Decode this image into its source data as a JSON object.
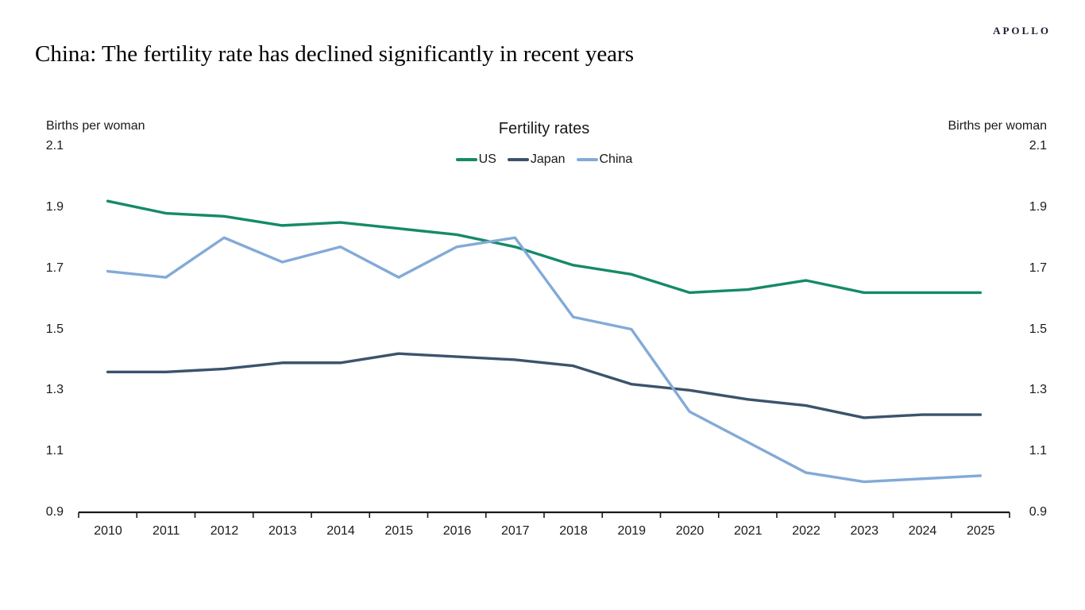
{
  "brand": "APOLLO",
  "page_title": "China: The fertility rate has declined significantly in recent years",
  "chart_data": {
    "type": "line",
    "title": "Fertility rates",
    "ylabel_left": "Births per woman",
    "ylabel_right": "Births per woman",
    "x": [
      2010,
      2011,
      2012,
      2013,
      2014,
      2015,
      2016,
      2017,
      2018,
      2019,
      2020,
      2021,
      2022,
      2023,
      2024,
      2025
    ],
    "series": [
      {
        "name": "US",
        "color": "#158a68",
        "values": [
          1.92,
          1.88,
          1.87,
          1.84,
          1.85,
          1.83,
          1.81,
          1.77,
          1.71,
          1.68,
          1.62,
          1.63,
          1.66,
          1.62,
          1.62,
          1.62
        ]
      },
      {
        "name": "Japan",
        "color": "#3c536c",
        "values": [
          1.36,
          1.36,
          1.37,
          1.39,
          1.39,
          1.42,
          1.41,
          1.4,
          1.38,
          1.32,
          1.3,
          1.27,
          1.25,
          1.21,
          1.22,
          1.22
        ]
      },
      {
        "name": "China",
        "color": "#83aad7",
        "values": [
          1.69,
          1.67,
          1.8,
          1.72,
          1.77,
          1.67,
          1.77,
          1.8,
          1.54,
          1.5,
          1.23,
          1.13,
          1.03,
          1.0,
          1.01,
          1.02
        ]
      }
    ],
    "ylim": [
      0.9,
      2.1
    ],
    "yticks": [
      2.1,
      1.9,
      1.7,
      1.5,
      1.3,
      1.1,
      0.9
    ],
    "grid": false,
    "legend_position": "top-center",
    "axis_color": "#1a1a1a"
  }
}
